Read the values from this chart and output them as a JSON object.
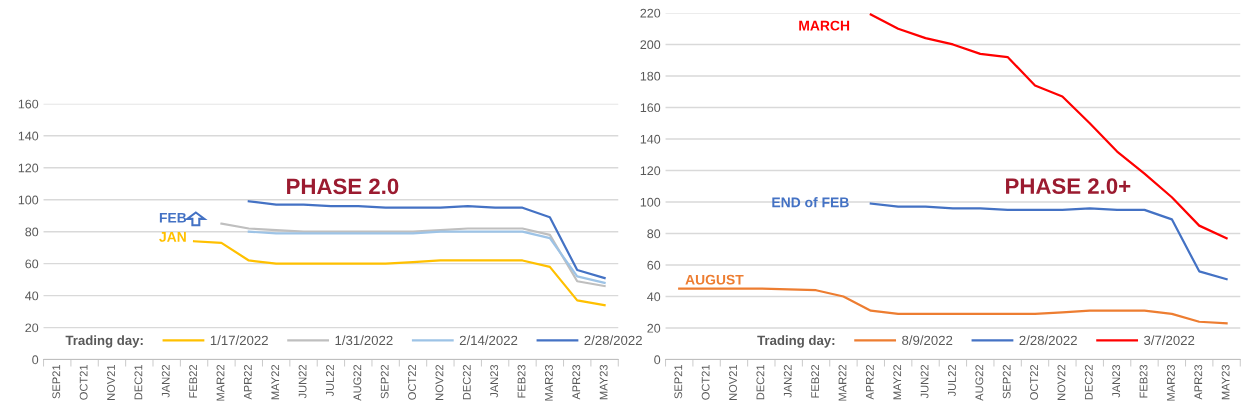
{
  "chart_data": [
    {
      "type": "line",
      "categories": [
        "SEP21",
        "OCT21",
        "NOV21",
        "DEC21",
        "JAN22",
        "FEB22",
        "MAR22",
        "APR22",
        "MAY22",
        "JUN22",
        "JUL22",
        "AUG22",
        "SEP22",
        "OCT22",
        "NOV22",
        "DEC22",
        "JAN23",
        "FEB23",
        "MAR23",
        "APR23",
        "MAY23"
      ],
      "ylim": [
        0,
        160
      ],
      "yticks": [
        0,
        20,
        40,
        60,
        80,
        100,
        120,
        140,
        160
      ],
      "grid": "y",
      "legend": "bottom",
      "legend_title": "Trading day:",
      "marker": "none",
      "line_style": "solid",
      "series": [
        {
          "name": "1/17/2022",
          "color": "#ffc000",
          "values": [
            null,
            null,
            null,
            null,
            null,
            74,
            73,
            62,
            60,
            60,
            60,
            60,
            60,
            61,
            62,
            62,
            62,
            62,
            58,
            37,
            34
          ]
        },
        {
          "name": "1/31/2022",
          "color": "#bfbfbf",
          "values": [
            null,
            null,
            null,
            null,
            null,
            null,
            85,
            82,
            81,
            80,
            80,
            80,
            80,
            80,
            81,
            82,
            82,
            82,
            78,
            49,
            46
          ]
        },
        {
          "name": "2/14/2022",
          "color": "#9dc3e6",
          "values": [
            null,
            null,
            null,
            null,
            null,
            null,
            null,
            80,
            79,
            79,
            79,
            79,
            79,
            79,
            80,
            80,
            80,
            80,
            76,
            52,
            48
          ]
        },
        {
          "name": "2/28/2022",
          "color": "#4472c4",
          "values": [
            null,
            null,
            null,
            null,
            null,
            null,
            null,
            99,
            97,
            97,
            96,
            96,
            95,
            95,
            95,
            96,
            95,
            95,
            89,
            56,
            51
          ]
        }
      ],
      "annotations": [
        "PHASE 2.0",
        "FEB",
        "JAN"
      ]
    },
    {
      "type": "line",
      "categories": [
        "SEP21",
        "OCT21",
        "NOV21",
        "DEC21",
        "JAN22",
        "FEB22",
        "MAR22",
        "APR22",
        "MAY22",
        "JUN22",
        "JUL22",
        "AUG22",
        "SEP22",
        "OCT22",
        "NOV22",
        "DEC22",
        "JAN23",
        "FEB23",
        "MAR23",
        "APR23",
        "MAY23"
      ],
      "ylim": [
        0,
        220
      ],
      "yticks": [
        0,
        20,
        40,
        60,
        80,
        100,
        120,
        140,
        160,
        180,
        200,
        220
      ],
      "grid": "y",
      "legend": "bottom",
      "legend_title": "Trading day:",
      "marker": "none",
      "line_style": "solid",
      "series": [
        {
          "name": "8/9/2022",
          "color": "#ed7d31",
          "values": [
            45,
            45,
            45,
            45,
            44.5,
            44,
            40,
            31,
            29,
            29,
            29,
            29,
            29,
            29,
            30,
            31,
            31,
            31,
            29,
            24,
            23
          ]
        },
        {
          "name": "2/28/2022",
          "color": "#4472c4",
          "values": [
            null,
            null,
            null,
            null,
            null,
            null,
            null,
            99,
            97,
            97,
            96,
            96,
            95,
            95,
            95,
            96,
            95,
            95,
            89,
            56,
            51
          ]
        },
        {
          "name": "3/7/2022",
          "color": "#ff0000",
          "values": [
            null,
            null,
            null,
            null,
            null,
            null,
            null,
            219,
            210,
            204,
            200,
            194,
            192,
            174,
            167,
            150,
            132,
            118,
            103,
            85,
            77
          ]
        }
      ],
      "annotations": [
        "MARCH",
        "END of FEB",
        "AUGUST",
        "PHASE 2.0+"
      ]
    }
  ]
}
